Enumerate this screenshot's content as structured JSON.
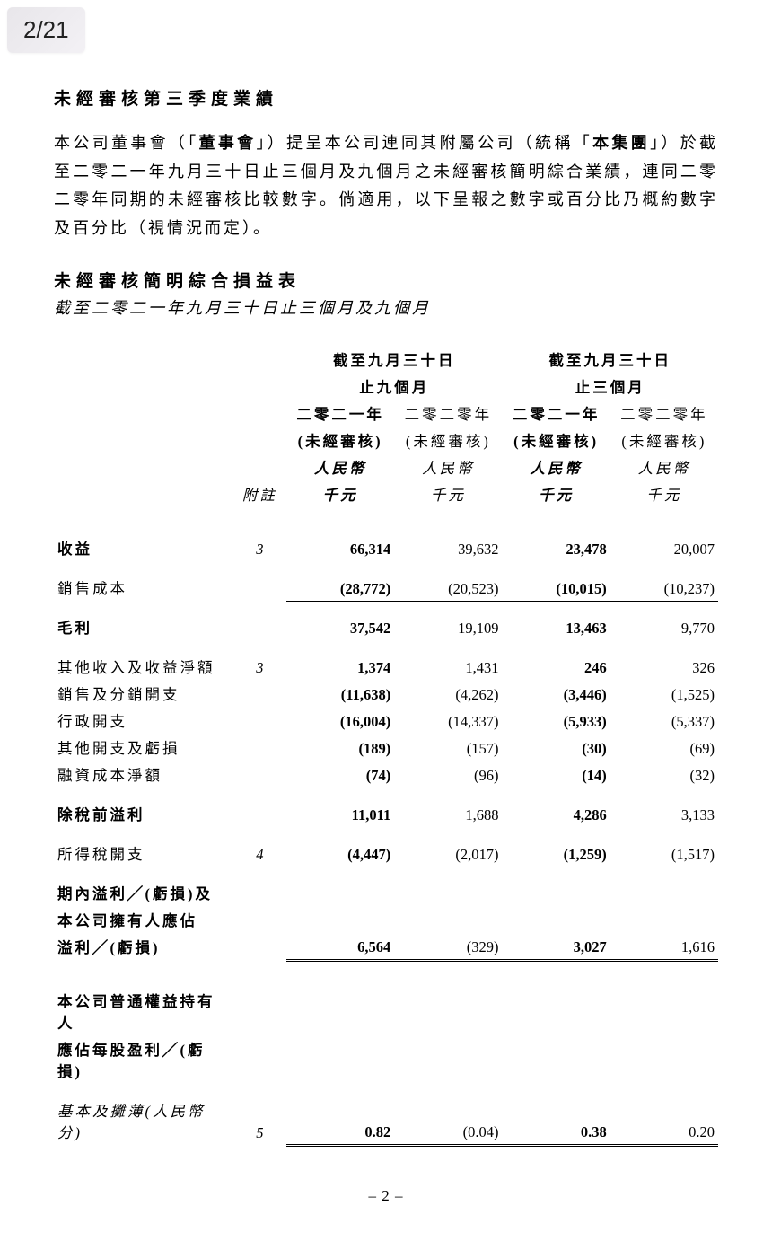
{
  "page_counter": "2/21",
  "section_title": "未經審核第三季度業績",
  "body_paragraph_parts": {
    "p1": "本公司董事會（「",
    "p2": "董事會",
    "p3": "」）提呈本公司連同其附屬公司（統稱「",
    "p4": "本集團",
    "p5": "」）於截至二零二一年九月三十日止三個月及九個月之未經審核簡明綜合業績，連同二零二零年同期的未經審核比較數字。倘適用，以下呈報之數字或百分比乃概約數字及百分比（視情況而定）。"
  },
  "subsection_title": "未經審核簡明綜合損益表",
  "subsection_subtitle": "截至二零二一年九月三十日止三個月及九個月",
  "headers": {
    "period1_line1": "截至九月三十日",
    "period1_line2": "止九個月",
    "period2_line1": "截至九月三十日",
    "period2_line2": "止三個月",
    "year_2021": "二零二一年",
    "year_2020": "二零二零年",
    "audit_b": "(未經審核)",
    "audit": "(未經審核)",
    "currency_b": "人民幣",
    "currency": "人民幣",
    "unit_b": "千元",
    "unit": "千元",
    "note": "附註"
  },
  "rows": {
    "revenue": {
      "label": "收益",
      "note": "3",
      "c1": "66,314",
      "c2": "39,632",
      "c3": "23,478",
      "c4": "20,007"
    },
    "cogs": {
      "label": "銷售成本",
      "note": "",
      "c1": "(28,772)",
      "c2": "(20,523)",
      "c3": "(10,015)",
      "c4": "(10,237)"
    },
    "gross": {
      "label": "毛利",
      "note": "",
      "c1": "37,542",
      "c2": "19,109",
      "c3": "13,463",
      "c4": "9,770"
    },
    "other_income": {
      "label": "其他收入及收益淨額",
      "note": "3",
      "c1": "1,374",
      "c2": "1,431",
      "c3": "246",
      "c4": "326"
    },
    "selling": {
      "label": "銷售及分銷開支",
      "note": "",
      "c1": "(11,638)",
      "c2": "(4,262)",
      "c3": "(3,446)",
      "c4": "(1,525)"
    },
    "admin": {
      "label": "行政開支",
      "note": "",
      "c1": "(16,004)",
      "c2": "(14,337)",
      "c3": "(5,933)",
      "c4": "(5,337)"
    },
    "other_exp": {
      "label": "其他開支及虧損",
      "note": "",
      "c1": "(189)",
      "c2": "(157)",
      "c3": "(30)",
      "c4": "(69)"
    },
    "finance": {
      "label": "融資成本淨額",
      "note": "",
      "c1": "(74)",
      "c2": "(96)",
      "c3": "(14)",
      "c4": "(32)"
    },
    "pbt": {
      "label": "除稅前溢利",
      "note": "",
      "c1": "11,011",
      "c2": "1,688",
      "c3": "4,286",
      "c4": "3,133"
    },
    "tax": {
      "label": "所得稅開支",
      "note": "4",
      "c1": "(4,447)",
      "c2": "(2,017)",
      "c3": "(1,259)",
      "c4": "(1,517)"
    },
    "profit_l1": "期內溢利╱(虧損)及",
    "profit_l2": "本公司擁有人應佔",
    "profit_l3": "溢利╱(虧損)",
    "profit": {
      "c1": "6,564",
      "c2": "(329)",
      "c3": "3,027",
      "c4": "1,616"
    },
    "eps_h1": "本公司普通權益持有人",
    "eps_h2": "應佔每股盈利╱(虧損)",
    "eps": {
      "label": "基本及攤薄(人民幣分)",
      "note": "5",
      "c1": "0.82",
      "c2": "(0.04)",
      "c3": "0.38",
      "c4": "0.20"
    }
  },
  "page_number": "– 2 –"
}
